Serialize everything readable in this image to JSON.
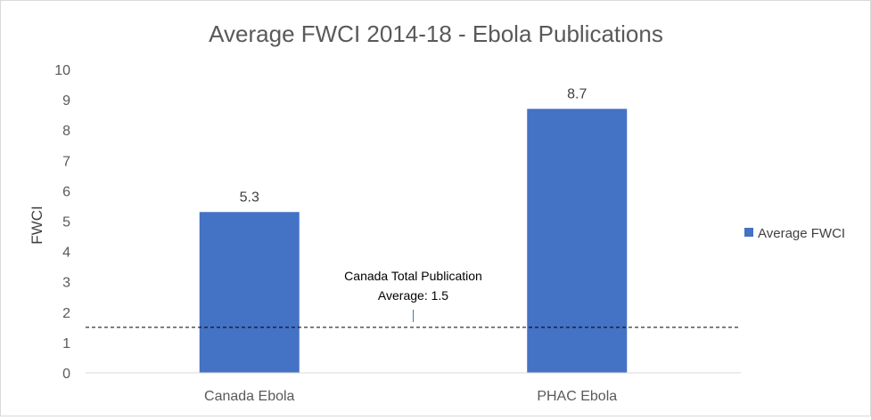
{
  "chart_data": {
    "type": "bar",
    "title": "Average FWCI 2014-18 - Ebola Publications",
    "xlabel": "",
    "ylabel": "FWCI",
    "categories": [
      "Canada Ebola",
      "PHAC Ebola"
    ],
    "series": [
      {
        "name": "Average FWCI",
        "values": [
          5.3,
          8.7
        ],
        "color": "#4472c4"
      }
    ],
    "data_labels": [
      "5.3",
      "8.7"
    ],
    "ylim": [
      0,
      10
    ],
    "yticks": [
      0,
      1,
      2,
      3,
      4,
      5,
      6,
      7,
      8,
      9,
      10
    ],
    "grid": false,
    "legend_position": "right",
    "reference_line": {
      "value": 1.5,
      "style": "dashed",
      "annotation": [
        "Canada Total Publication",
        "Average: 1.5"
      ]
    }
  }
}
